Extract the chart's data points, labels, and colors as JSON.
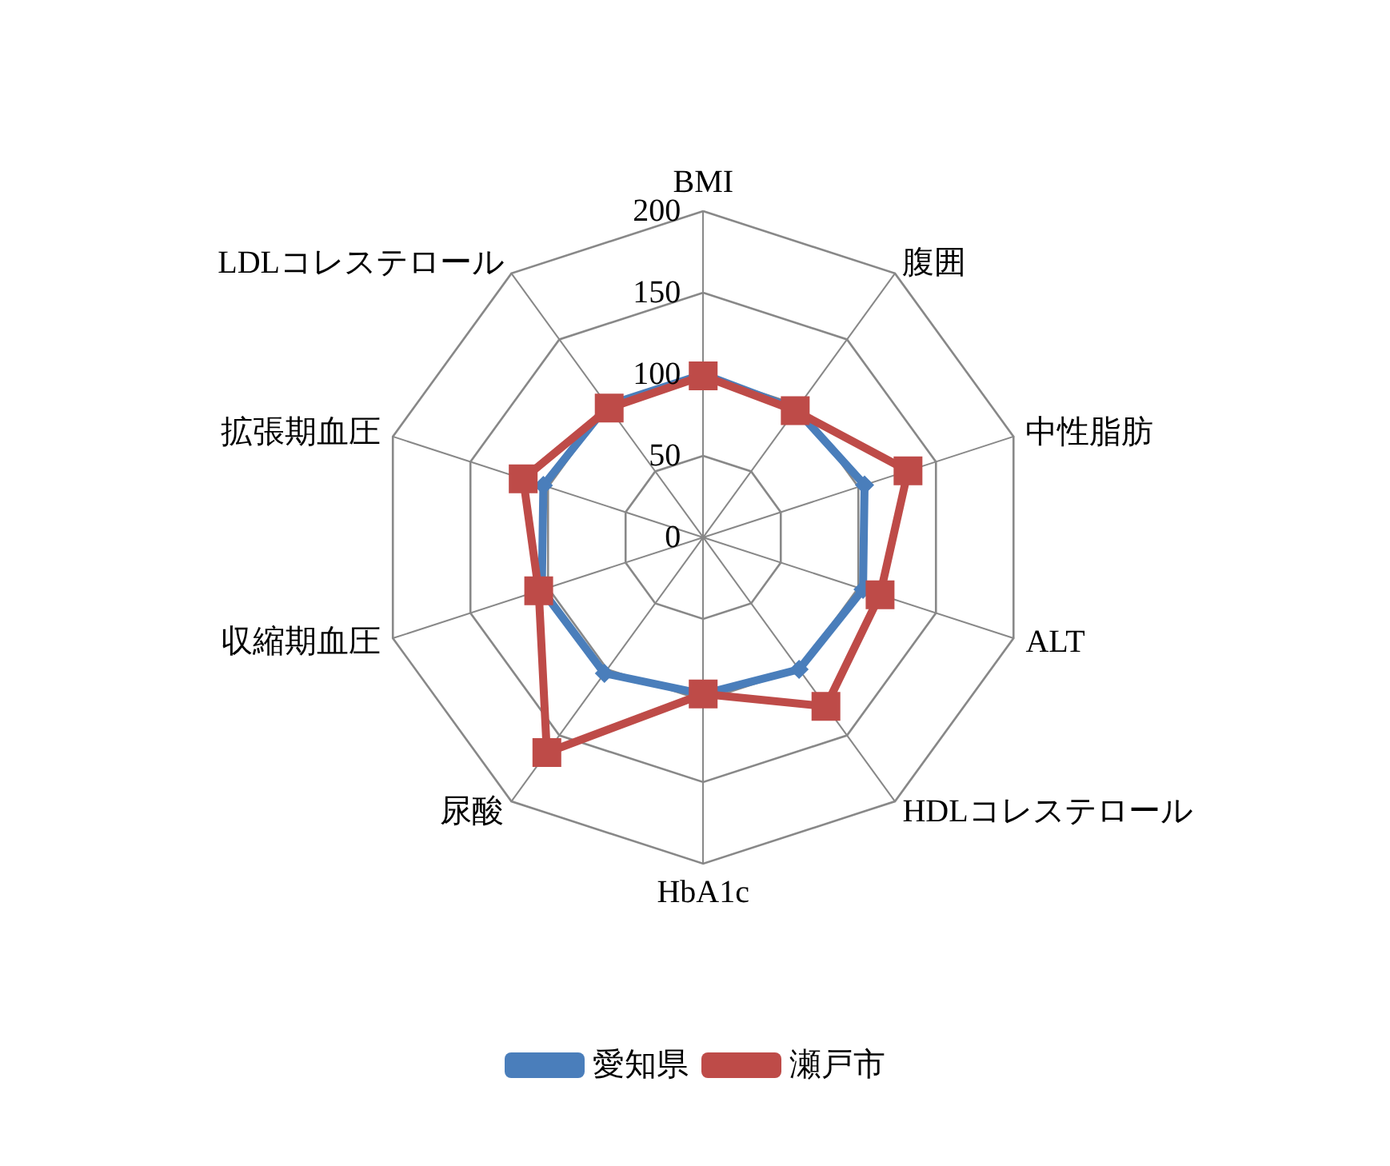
{
  "chart_data": {
    "type": "radar",
    "categories": [
      "BMI",
      "腹囲",
      "中性脂肪",
      "ALT",
      "HDLコレステロール",
      "HbA1c",
      "尿酸",
      "収縮期血圧",
      "拡張期血圧",
      "LDLコレステロール"
    ],
    "series": [
      {
        "name": "愛知県",
        "color": "#4a7ebb",
        "marker": "diamond",
        "values": [
          100,
          97,
          104,
          103,
          100,
          96,
          103,
          104,
          103,
          100
        ]
      },
      {
        "name": "瀬戸市",
        "color": "#be4b48",
        "marker": "square",
        "values": [
          99,
          96,
          132,
          114,
          128,
          96,
          163,
          106,
          116,
          98
        ]
      }
    ],
    "ylim": [
      0,
      200
    ],
    "yticks": [
      0,
      50,
      100,
      150,
      200
    ],
    "legend": "bottom",
    "grid": true
  }
}
